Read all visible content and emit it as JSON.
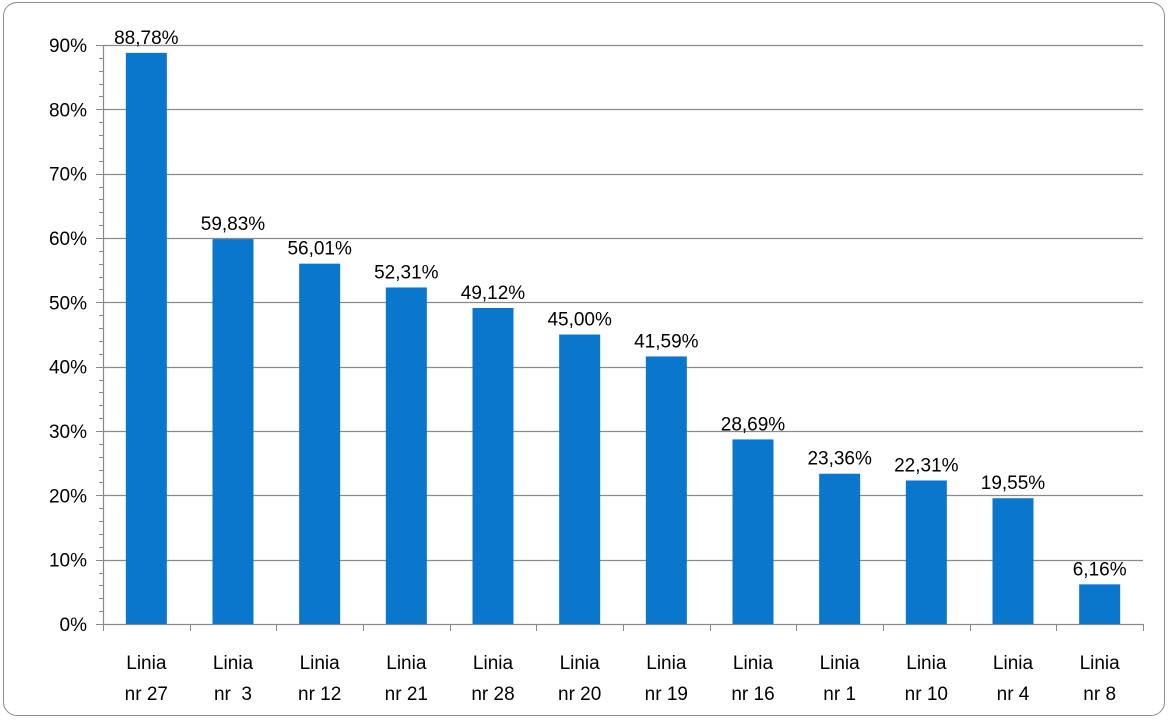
{
  "chart_data": {
    "type": "bar",
    "categories": [
      [
        "Linia",
        "nr 27"
      ],
      [
        "Linia",
        "nr  3"
      ],
      [
        "Linia",
        "nr 12"
      ],
      [
        "Linia",
        "nr 21"
      ],
      [
        "Linia",
        "nr 28"
      ],
      [
        "Linia",
        "nr 20"
      ],
      [
        "Linia",
        "nr 19"
      ],
      [
        "Linia",
        "nr 16"
      ],
      [
        "Linia",
        "nr 1"
      ],
      [
        "Linia",
        "nr 10"
      ],
      [
        "Linia",
        "nr 4"
      ],
      [
        "Linia",
        "nr 8"
      ]
    ],
    "values": [
      88.78,
      59.83,
      56.01,
      52.31,
      49.12,
      45.0,
      41.59,
      28.69,
      23.36,
      22.31,
      19.55,
      6.16
    ],
    "data_labels": [
      "88,78%",
      "59,83%",
      "56,01%",
      "52,31%",
      "49,12%",
      "45,00%",
      "41,59%",
      "28,69%",
      "23,36%",
      "22,31%",
      "19,55%",
      "6,16%"
    ],
    "yticks": [
      0,
      10,
      20,
      30,
      40,
      50,
      60,
      70,
      80,
      90
    ],
    "ytick_labels": [
      "0%",
      "10%",
      "20%",
      "30%",
      "40%",
      "50%",
      "60%",
      "70%",
      "80%",
      "90%"
    ],
    "ylim": [
      0,
      90
    ],
    "title": "",
    "xlabel": "",
    "ylabel": "",
    "grid": true,
    "legend": "none",
    "bar_color": "#0a76cc",
    "grid_color": "#8a8a8a"
  }
}
